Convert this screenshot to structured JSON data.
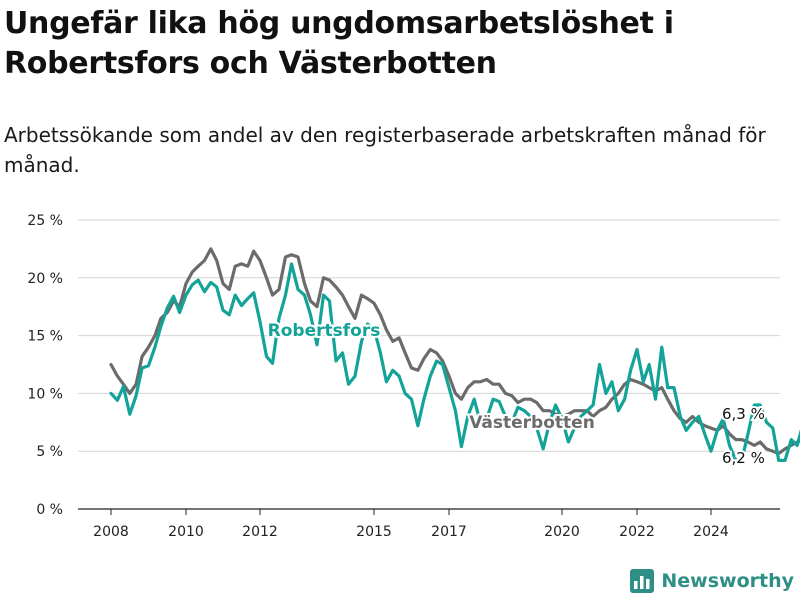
{
  "title": "Ungefär lika hög ungdomsarbetslöshet i Robertsfors och Västerbotten",
  "subtitle": "Arbetssökande som andel av den registerbaserade arbetskraften månad för månad.",
  "brand": {
    "name": "Newsworthy",
    "icon": "bar-chart-icon"
  },
  "colors": {
    "robertsfors": "#14a398",
    "vasterbotten": "#6b6b6b",
    "grid": "#d4d4d4",
    "axis": "#222222"
  },
  "chart_data": {
    "type": "line",
    "xlim": [
      2007.4,
      2025.9
    ],
    "ylim": [
      0,
      25
    ],
    "y_ticks": [
      0,
      5,
      10,
      15,
      20,
      25
    ],
    "y_tick_labels": [
      "0 %",
      "5 %",
      "10 %",
      "15 %",
      "20 %",
      "25 %"
    ],
    "x_ticks": [
      2008,
      2010,
      2012,
      2015,
      2017,
      2020,
      2022,
      2024
    ],
    "x_tick_labels": [
      "2008",
      "2010",
      "2012",
      "2015",
      "2017",
      "2020",
      "2022",
      "2024"
    ],
    "grid": true,
    "legend": "inline labels",
    "series": [
      {
        "name": "Robertsfors",
        "end_label": "6,3 %",
        "points": [
          [
            2008.0,
            10.0
          ],
          [
            2008.17,
            9.4
          ],
          [
            2008.33,
            10.6
          ],
          [
            2008.5,
            8.2
          ],
          [
            2008.67,
            9.8
          ],
          [
            2008.83,
            12.2
          ],
          [
            2009.0,
            12.4
          ],
          [
            2009.17,
            14.0
          ],
          [
            2009.33,
            15.8
          ],
          [
            2009.5,
            17.4
          ],
          [
            2009.67,
            18.4
          ],
          [
            2009.83,
            17.0
          ],
          [
            2010.0,
            18.5
          ],
          [
            2010.17,
            19.4
          ],
          [
            2010.33,
            19.8
          ],
          [
            2010.5,
            18.8
          ],
          [
            2010.67,
            19.6
          ],
          [
            2010.83,
            19.2
          ],
          [
            2011.0,
            17.2
          ],
          [
            2011.17,
            16.8
          ],
          [
            2011.33,
            18.5
          ],
          [
            2011.5,
            17.6
          ],
          [
            2011.67,
            18.2
          ],
          [
            2011.83,
            18.7
          ],
          [
            2012.0,
            16.2
          ],
          [
            2012.17,
            13.2
          ],
          [
            2012.33,
            12.6
          ],
          [
            2012.5,
            16.5
          ],
          [
            2012.67,
            18.5
          ],
          [
            2012.83,
            21.2
          ],
          [
            2013.0,
            19.0
          ],
          [
            2013.17,
            18.5
          ],
          [
            2013.33,
            16.8
          ],
          [
            2013.5,
            14.2
          ],
          [
            2013.67,
            18.5
          ],
          [
            2013.83,
            18.0
          ],
          [
            2014.0,
            12.8
          ],
          [
            2014.17,
            13.5
          ],
          [
            2014.33,
            10.8
          ],
          [
            2014.5,
            11.5
          ],
          [
            2014.67,
            14.5
          ],
          [
            2014.83,
            16.0
          ],
          [
            2015.0,
            15.6
          ],
          [
            2015.17,
            13.5
          ],
          [
            2015.33,
            11.0
          ],
          [
            2015.5,
            12.0
          ],
          [
            2015.67,
            11.5
          ],
          [
            2015.83,
            10.0
          ],
          [
            2016.0,
            9.5
          ],
          [
            2016.17,
            7.2
          ],
          [
            2016.33,
            9.5
          ],
          [
            2016.5,
            11.5
          ],
          [
            2016.67,
            12.8
          ],
          [
            2016.83,
            12.5
          ],
          [
            2017.0,
            10.5
          ],
          [
            2017.17,
            8.5
          ],
          [
            2017.33,
            5.4
          ],
          [
            2017.5,
            8.0
          ],
          [
            2017.67,
            9.5
          ],
          [
            2017.83,
            7.5
          ],
          [
            2018.0,
            7.8
          ],
          [
            2018.17,
            9.5
          ],
          [
            2018.33,
            9.3
          ],
          [
            2018.5,
            8.0
          ],
          [
            2018.67,
            7.5
          ],
          [
            2018.83,
            8.8
          ],
          [
            2019.0,
            8.5
          ],
          [
            2019.17,
            8.0
          ],
          [
            2019.33,
            7.0
          ],
          [
            2019.5,
            5.2
          ],
          [
            2019.67,
            7.5
          ],
          [
            2019.83,
            9.0
          ],
          [
            2020.0,
            7.8
          ],
          [
            2020.17,
            5.8
          ],
          [
            2020.33,
            7.0
          ],
          [
            2020.5,
            8.0
          ],
          [
            2020.67,
            8.5
          ],
          [
            2020.83,
            9.0
          ],
          [
            2021.0,
            12.5
          ],
          [
            2021.17,
            10.0
          ],
          [
            2021.33,
            11.0
          ],
          [
            2021.5,
            8.5
          ],
          [
            2021.67,
            9.5
          ],
          [
            2021.83,
            12.0
          ],
          [
            2022.0,
            13.8
          ],
          [
            2022.17,
            11.0
          ],
          [
            2022.33,
            12.5
          ],
          [
            2022.5,
            9.5
          ],
          [
            2022.67,
            14.0
          ],
          [
            2022.83,
            10.5
          ],
          [
            2023.0,
            10.5
          ],
          [
            2023.17,
            8.0
          ],
          [
            2023.33,
            6.8
          ],
          [
            2023.5,
            7.5
          ],
          [
            2023.67,
            8.0
          ],
          [
            2023.83,
            6.5
          ],
          [
            2024.0,
            5.0
          ],
          [
            2024.17,
            6.8
          ],
          [
            2024.33,
            7.8
          ],
          [
            2024.5,
            5.5
          ],
          [
            2024.67,
            4.2
          ],
          [
            2024.83,
            4.2
          ],
          [
            2025.0,
            6.5
          ],
          [
            2025.17,
            9.0
          ],
          [
            2025.33,
            9.0
          ],
          [
            2025.5,
            7.5
          ],
          [
            2025.67,
            7.0
          ],
          [
            2025.83,
            4.2
          ],
          [
            2026.0,
            4.2
          ],
          [
            2026.17,
            6.0
          ],
          [
            2026.33,
            5.5
          ],
          [
            2026.5,
            7.5
          ],
          [
            2026.67,
            6.3
          ]
        ]
      },
      {
        "name": "Västerbotten",
        "end_label": "6,2 %",
        "points": [
          [
            2008.0,
            12.5
          ],
          [
            2008.17,
            11.5
          ],
          [
            2008.33,
            10.8
          ],
          [
            2008.5,
            10.0
          ],
          [
            2008.67,
            10.8
          ],
          [
            2008.83,
            13.2
          ],
          [
            2009.0,
            14.0
          ],
          [
            2009.17,
            15.0
          ],
          [
            2009.33,
            16.5
          ],
          [
            2009.5,
            17.0
          ],
          [
            2009.67,
            18.0
          ],
          [
            2009.83,
            17.5
          ],
          [
            2010.0,
            19.5
          ],
          [
            2010.17,
            20.5
          ],
          [
            2010.33,
            21.0
          ],
          [
            2010.5,
            21.5
          ],
          [
            2010.67,
            22.5
          ],
          [
            2010.83,
            21.5
          ],
          [
            2011.0,
            19.5
          ],
          [
            2011.17,
            19.0
          ],
          [
            2011.33,
            21.0
          ],
          [
            2011.5,
            21.2
          ],
          [
            2011.67,
            21.0
          ],
          [
            2011.83,
            22.3
          ],
          [
            2012.0,
            21.5
          ],
          [
            2012.17,
            20.0
          ],
          [
            2012.33,
            18.5
          ],
          [
            2012.5,
            19.0
          ],
          [
            2012.67,
            21.8
          ],
          [
            2012.83,
            22.0
          ],
          [
            2013.0,
            21.8
          ],
          [
            2013.17,
            19.5
          ],
          [
            2013.33,
            18.0
          ],
          [
            2013.5,
            17.5
          ],
          [
            2013.67,
            20.0
          ],
          [
            2013.83,
            19.8
          ],
          [
            2014.0,
            19.2
          ],
          [
            2014.17,
            18.5
          ],
          [
            2014.33,
            17.5
          ],
          [
            2014.5,
            16.5
          ],
          [
            2014.67,
            18.5
          ],
          [
            2014.83,
            18.2
          ],
          [
            2015.0,
            17.8
          ],
          [
            2015.17,
            16.8
          ],
          [
            2015.33,
            15.5
          ],
          [
            2015.5,
            14.5
          ],
          [
            2015.67,
            14.8
          ],
          [
            2015.83,
            13.5
          ],
          [
            2016.0,
            12.2
          ],
          [
            2016.17,
            12.0
          ],
          [
            2016.33,
            13.0
          ],
          [
            2016.5,
            13.8
          ],
          [
            2016.67,
            13.5
          ],
          [
            2016.83,
            12.8
          ],
          [
            2017.0,
            11.5
          ],
          [
            2017.17,
            10.0
          ],
          [
            2017.33,
            9.5
          ],
          [
            2017.5,
            10.5
          ],
          [
            2017.67,
            11.0
          ],
          [
            2017.83,
            11.0
          ],
          [
            2018.0,
            11.2
          ],
          [
            2018.17,
            10.8
          ],
          [
            2018.33,
            10.8
          ],
          [
            2018.5,
            10.0
          ],
          [
            2018.67,
            9.8
          ],
          [
            2018.83,
            9.2
          ],
          [
            2019.0,
            9.5
          ],
          [
            2019.17,
            9.5
          ],
          [
            2019.33,
            9.2
          ],
          [
            2019.5,
            8.5
          ],
          [
            2019.67,
            8.5
          ],
          [
            2019.83,
            8.2
          ],
          [
            2020.0,
            8.0
          ],
          [
            2020.17,
            8.2
          ],
          [
            2020.33,
            8.5
          ],
          [
            2020.5,
            8.5
          ],
          [
            2020.67,
            8.5
          ],
          [
            2020.83,
            8.0
          ],
          [
            2021.0,
            8.5
          ],
          [
            2021.17,
            8.8
          ],
          [
            2021.33,
            9.5
          ],
          [
            2021.5,
            10.0
          ],
          [
            2021.67,
            10.8
          ],
          [
            2021.83,
            11.2
          ],
          [
            2022.0,
            11.0
          ],
          [
            2022.17,
            10.8
          ],
          [
            2022.33,
            10.5
          ],
          [
            2022.5,
            10.2
          ],
          [
            2022.67,
            10.5
          ],
          [
            2022.83,
            9.5
          ],
          [
            2023.0,
            8.5
          ],
          [
            2023.17,
            7.8
          ],
          [
            2023.33,
            7.5
          ],
          [
            2023.5,
            8.0
          ],
          [
            2023.67,
            7.5
          ],
          [
            2023.83,
            7.2
          ],
          [
            2024.0,
            7.0
          ],
          [
            2024.17,
            6.8
          ],
          [
            2024.33,
            7.2
          ],
          [
            2024.5,
            6.5
          ],
          [
            2024.67,
            6.0
          ],
          [
            2024.83,
            6.0
          ],
          [
            2025.0,
            5.8
          ],
          [
            2025.17,
            5.5
          ],
          [
            2025.33,
            5.8
          ],
          [
            2025.5,
            5.2
          ],
          [
            2025.67,
            5.0
          ],
          [
            2025.83,
            4.8
          ],
          [
            2026.0,
            5.2
          ],
          [
            2026.17,
            5.5
          ],
          [
            2026.33,
            5.8
          ],
          [
            2026.5,
            6.0
          ],
          [
            2026.67,
            6.2
          ]
        ]
      }
    ]
  }
}
